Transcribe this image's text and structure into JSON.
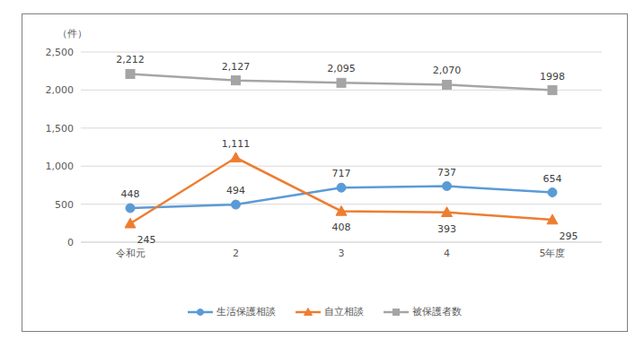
{
  "chart_data": {
    "type": "line",
    "ylabel": "（件）",
    "categories": [
      "令和元",
      "2",
      "3",
      "4",
      "5年度"
    ],
    "series": [
      {
        "name": "生活保護相談",
        "color": "#5b9bd5",
        "marker": "circle",
        "values": [
          448,
          494,
          717,
          737,
          654
        ]
      },
      {
        "name": "自立相談",
        "color": "#ed7d31",
        "marker": "triangle",
        "values": [
          245,
          1111,
          408,
          393,
          295
        ],
        "value_labels": [
          "245",
          "1,111",
          "408",
          "393",
          "295"
        ]
      },
      {
        "name": "被保護者数",
        "color": "#a5a5a5",
        "marker": "square",
        "values": [
          2212,
          2127,
          2095,
          2070,
          1998
        ],
        "value_labels": [
          "2,212",
          "2,127",
          "2,095",
          "2,070",
          "1998"
        ]
      }
    ],
    "ylim": [
      0,
      2500
    ],
    "yticks": [
      0,
      500,
      {
        "value": 1000,
        "label": "1,000"
      },
      {
        "value": 1500,
        "label": "1,500"
      },
      {
        "value": 2000,
        "label": "2,000"
      },
      {
        "value": 2500,
        "label": "2,500"
      }
    ],
    "grid": true,
    "legend": "bottom",
    "data_labels": true
  }
}
